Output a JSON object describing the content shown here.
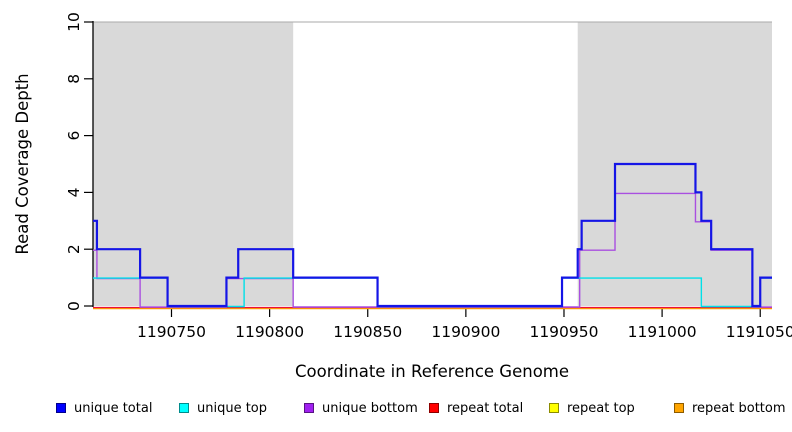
{
  "chart_data": {
    "type": "line",
    "subtype": "step-coverage",
    "title": "",
    "xlabel": "Coordinate in Reference Genome",
    "ylabel": "Read Coverage Depth",
    "xlim": [
      1190710,
      1191056
    ],
    "ylim": [
      0,
      10
    ],
    "x_ticks": [
      1190750,
      1190800,
      1190850,
      1190900,
      1190950,
      1191000,
      1191050
    ],
    "x_tick_labels": [
      "1190750",
      "1190800",
      "1190850",
      "1190900",
      "1190950",
      "1191000",
      "1191050"
    ],
    "y_ticks": [
      0,
      2,
      4,
      6,
      8,
      10
    ],
    "grid": false,
    "shading_color": "#D9D9D9",
    "shaded_x_ranges": [
      [
        1190710,
        1190812
      ],
      [
        1190957,
        1191056
      ]
    ],
    "top_rule_color": "#AAAAAA",
    "axis_color": "#000000",
    "legend_position": "bottom",
    "series": [
      {
        "name": "unique total",
        "color": "#1515E6",
        "steps": [
          [
            1190710,
            3
          ],
          [
            1190712,
            2
          ],
          [
            1190734,
            1
          ],
          [
            1190748,
            0
          ],
          [
            1190778,
            1
          ],
          [
            1190784,
            2
          ],
          [
            1190812,
            1
          ],
          [
            1190855,
            0
          ],
          [
            1190949,
            1
          ],
          [
            1190957,
            2
          ],
          [
            1190959,
            3
          ],
          [
            1190976,
            5
          ],
          [
            1191017,
            4
          ],
          [
            1191020,
            3
          ],
          [
            1191025,
            2
          ],
          [
            1191046,
            0
          ],
          [
            1191050,
            1
          ]
        ]
      },
      {
        "name": "unique top",
        "color": "#00E0E8",
        "steps": [
          [
            1190710,
            1
          ],
          [
            1190748,
            0
          ],
          [
            1190787,
            1
          ],
          [
            1190855,
            0
          ],
          [
            1190949,
            1
          ],
          [
            1191020,
            0
          ],
          [
            1191050,
            1
          ]
        ]
      },
      {
        "name": "unique bottom",
        "color": "#A94FE0",
        "steps": [
          [
            1190710,
            2
          ],
          [
            1190712,
            1
          ],
          [
            1190734,
            0
          ],
          [
            1190778,
            1
          ],
          [
            1190812,
            0
          ],
          [
            1190958,
            2
          ],
          [
            1190976,
            4
          ],
          [
            1191017,
            3
          ],
          [
            1191025,
            2
          ],
          [
            1191046,
            0
          ]
        ]
      },
      {
        "name": "repeat total",
        "color": "#E8103C",
        "steps": [
          [
            1190710,
            0
          ]
        ]
      },
      {
        "name": "repeat top",
        "color": "#FFFF00",
        "steps": [
          [
            1190710,
            0
          ]
        ]
      },
      {
        "name": "repeat bottom",
        "color": "#FFA500",
        "steps": [
          [
            1190710,
            0
          ]
        ]
      }
    ]
  },
  "legend": {
    "items": [
      {
        "label": "unique total",
        "color": "#0000FF"
      },
      {
        "label": "unique top",
        "color": "#00FFFF"
      },
      {
        "label": "unique bottom",
        "color": "#A020F0"
      },
      {
        "label": "repeat total",
        "color": "#FF0000"
      },
      {
        "label": "repeat top",
        "color": "#FFFF00"
      },
      {
        "label": "repeat bottom",
        "color": "#FFA500"
      }
    ]
  }
}
